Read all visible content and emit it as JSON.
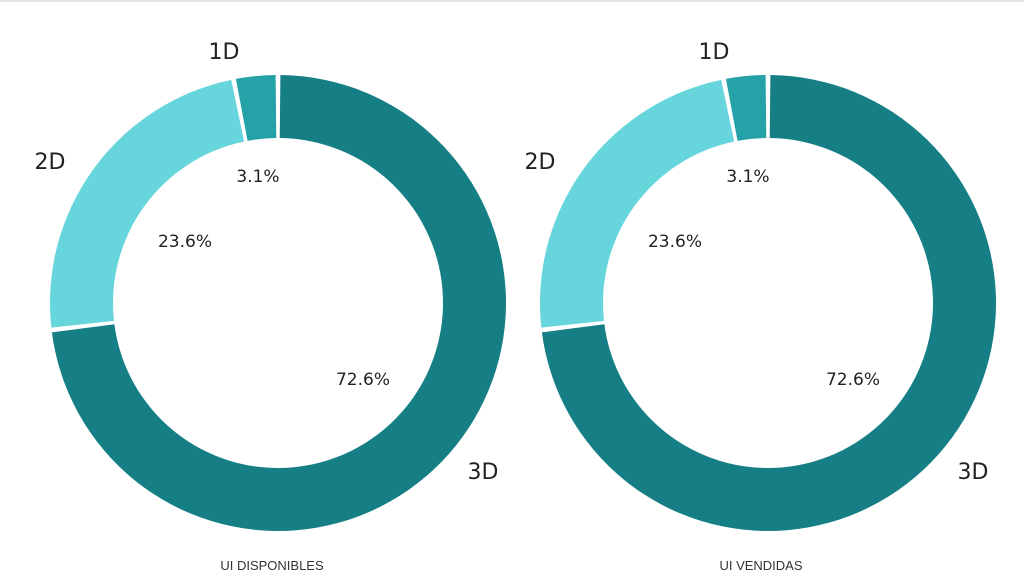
{
  "chart_data": [
    {
      "type": "pie",
      "variant": "donut",
      "title": "UI DISPONIBLES",
      "slices": [
        {
          "name": "3D",
          "value": 72.6,
          "label": "72.6%",
          "color": "#157f85"
        },
        {
          "name": "2D",
          "value": 23.6,
          "label": "23.6%",
          "color": "#66d5dc"
        },
        {
          "name": "1D",
          "value": 3.1,
          "label": "3.1%",
          "color": "#25a1a8"
        }
      ]
    },
    {
      "type": "pie",
      "variant": "donut",
      "title": "UI VENDIDAS",
      "slices": [
        {
          "name": "3D",
          "value": 72.6,
          "label": "72.6%",
          "color": "#157f85"
        },
        {
          "name": "2D",
          "value": 23.6,
          "label": "23.6%",
          "color": "#66d5dc"
        },
        {
          "name": "1D",
          "value": 3.1,
          "label": "3.1%",
          "color": "#25a1a8"
        }
      ]
    }
  ]
}
